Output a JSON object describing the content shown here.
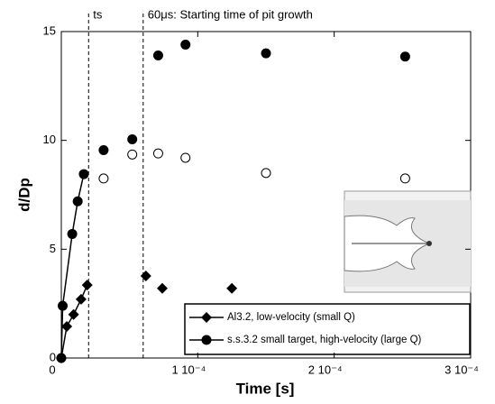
{
  "chart_data": {
    "type": "scatter",
    "x_label": "Time [s]",
    "y_label": "d/Dp",
    "xlim": [
      0,
      0.0003
    ],
    "ylim": [
      0,
      15
    ],
    "xticks": [
      0,
      {
        "value": 0.0001,
        "label": "1 10⁻⁴"
      },
      {
        "value": 0.0002,
        "label": "2 10⁻⁴"
      },
      {
        "value": 0.0003,
        "label": "3 10⁻⁴"
      }
    ],
    "yticks": [
      0,
      5,
      10,
      15
    ],
    "annotations": [
      {
        "x": 2e-05,
        "text": "ts"
      },
      {
        "x": 6e-05,
        "text": "60μs: Starting time of pit growth"
      }
    ],
    "series": [
      {
        "name": "Al3.2, low-velocity (small Q)",
        "marker": "diamond",
        "color": "#000",
        "line_points": 5,
        "x": [
          0,
          4e-06,
          9e-06,
          1.45e-05,
          1.9e-05,
          6.2e-05,
          7.4e-05,
          0.000125
        ],
        "values": [
          0,
          1.45,
          2.0,
          2.7,
          3.35,
          3.77,
          3.2,
          3.2
        ]
      },
      {
        "name": "s.s.3.2 small target, high-velocity (large Q)",
        "marker": "circle",
        "color": "#000",
        "line_points": 5,
        "x": [
          0,
          1e-06,
          8e-06,
          1.2e-05,
          1.65e-05,
          3.1e-05,
          5.2e-05,
          7.1e-05,
          9.1e-05,
          0.00015,
          0.000252
        ],
        "values": [
          0,
          2.4,
          5.7,
          7.2,
          8.45,
          9.55,
          10.05,
          13.9,
          14.4,
          14.0,
          13.85
        ]
      },
      {
        "marker": "open-circle",
        "color": "#000",
        "x": [
          3.1e-05,
          5.2e-05,
          7.1e-05,
          9.1e-05,
          0.00015,
          0.000252
        ],
        "values": [
          8.25,
          9.35,
          9.4,
          9.2,
          8.5,
          8.25
        ]
      }
    ]
  }
}
